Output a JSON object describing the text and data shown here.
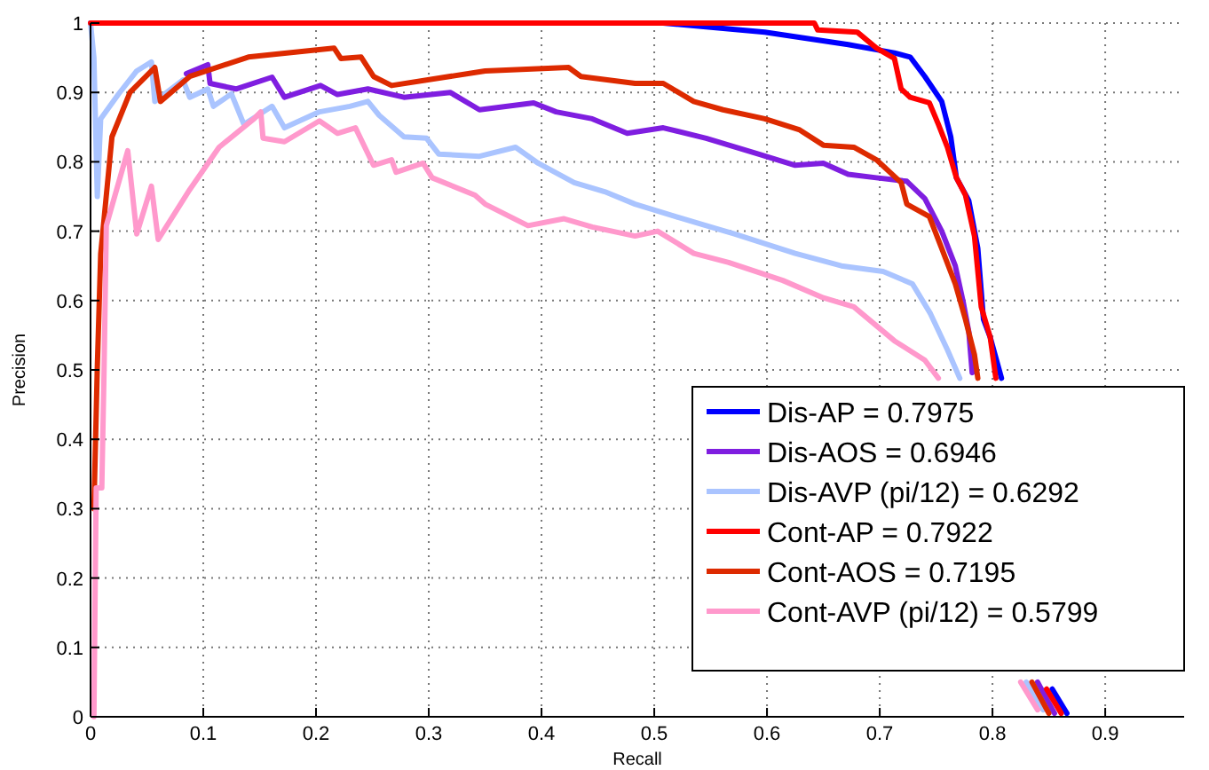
{
  "chart_data": {
    "type": "line",
    "xlabel": "Recall",
    "ylabel": "Precision",
    "xlim": [
      0,
      0.97
    ],
    "ylim": [
      0,
      1
    ],
    "xticks": [
      0,
      0.1,
      0.2,
      0.3,
      0.4,
      0.5,
      0.6,
      0.7,
      0.8,
      0.9
    ],
    "yticks": [
      0,
      0.1,
      0.2,
      0.3,
      0.4,
      0.5,
      0.6,
      0.7,
      0.8,
      0.9,
      1
    ],
    "grid": true,
    "legend": "bottom right",
    "marker": "none",
    "line_style": "solid",
    "series": [
      {
        "name": "Dis-AP = 0.7975",
        "color": "#0000ff",
        "x": [
          0,
          0.508,
          0.598,
          0.672,
          0.713,
          0.727,
          0.74,
          0.755,
          0.763,
          0.768,
          0.779,
          0.787,
          0.792,
          0.798,
          0.808,
          0.83,
          0.853,
          0.866
        ],
        "values": [
          1,
          1,
          0.987,
          0.969,
          0.957,
          0.951,
          0.923,
          0.887,
          0.836,
          0.777,
          0.744,
          0.675,
          0.573,
          0.547,
          0.488,
          null,
          0.04,
          0.005
        ]
      },
      {
        "name": "Dis-AOS = 0.6946",
        "color": "#7f1ee0",
        "x": [
          0.085,
          0.104,
          0.106,
          0.129,
          0.161,
          0.172,
          0.204,
          0.219,
          0.246,
          0.278,
          0.319,
          0.345,
          0.393,
          0.413,
          0.445,
          0.476,
          0.508,
          0.546,
          0.593,
          0.625,
          0.65,
          0.672,
          0.697,
          0.724,
          0.74,
          0.755,
          0.767,
          0.774,
          0.779,
          0.782,
          0.81,
          0.84,
          0.855
        ],
        "values": [
          0.927,
          0.94,
          0.913,
          0.905,
          0.922,
          0.893,
          0.91,
          0.897,
          0.905,
          0.893,
          0.9,
          0.875,
          0.885,
          0.872,
          0.862,
          0.841,
          0.849,
          0.834,
          0.811,
          0.795,
          0.798,
          0.782,
          0.777,
          0.772,
          0.747,
          0.7,
          0.65,
          0.598,
          0.555,
          0.496,
          null,
          0.05,
          0.005
        ]
      },
      {
        "name": "Dis-AVP (pi/12) = 0.6292",
        "color": "#aac4ff",
        "x": [
          0,
          0.003,
          0.006,
          0.009,
          0.025,
          0.041,
          0.054,
          0.057,
          0.082,
          0.088,
          0.104,
          0.109,
          0.125,
          0.136,
          0.161,
          0.172,
          0.203,
          0.23,
          0.246,
          0.256,
          0.278,
          0.298,
          0.309,
          0.345,
          0.377,
          0.397,
          0.429,
          0.456,
          0.483,
          0.519,
          0.571,
          0.625,
          0.666,
          0.703,
          0.729,
          0.745,
          0.76,
          0.771,
          0.8,
          0.83,
          0.845
        ],
        "values": [
          1,
          0.95,
          0.75,
          0.862,
          0.898,
          0.931,
          0.944,
          0.887,
          0.918,
          0.893,
          0.905,
          0.88,
          0.898,
          0.854,
          0.88,
          0.849,
          0.872,
          0.88,
          0.887,
          0.867,
          0.836,
          0.834,
          0.811,
          0.808,
          0.821,
          0.798,
          0.77,
          0.757,
          0.739,
          0.721,
          0.696,
          0.668,
          0.65,
          0.642,
          0.624,
          0.581,
          0.529,
          0.488,
          null,
          0.05,
          0.01
        ]
      },
      {
        "name": "Cont-AP = 0.7922",
        "color": "#ff0000",
        "x": [
          0,
          0.642,
          0.645,
          0.68,
          0.697,
          0.713,
          0.719,
          0.727,
          0.744,
          0.752,
          0.76,
          0.768,
          0.776,
          0.784,
          0.79,
          0.798,
          0.803,
          0.83,
          0.848,
          0.861
        ],
        "values": [
          1,
          1,
          0.99,
          0.987,
          0.964,
          0.949,
          0.905,
          0.893,
          0.885,
          0.854,
          0.821,
          0.777,
          0.752,
          0.693,
          0.591,
          0.547,
          0.488,
          null,
          0.04,
          0.005
        ]
      },
      {
        "name": "Cont-AOS = 0.7195",
        "color": "#dd2a00",
        "x": [
          0.003,
          0.006,
          0.009,
          0.019,
          0.035,
          0.057,
          0.062,
          0.088,
          0.14,
          0.193,
          0.216,
          0.222,
          0.24,
          0.251,
          0.267,
          0.35,
          0.424,
          0.435,
          0.483,
          0.508,
          0.535,
          0.561,
          0.598,
          0.629,
          0.65,
          0.677,
          0.697,
          0.719,
          0.724,
          0.744,
          0.755,
          0.767,
          0.776,
          0.784,
          0.787,
          0.81,
          0.835,
          0.85
        ],
        "values": [
          0.3,
          0.504,
          0.667,
          0.836,
          0.9,
          0.936,
          0.887,
          0.923,
          0.951,
          0.96,
          0.964,
          0.949,
          0.951,
          0.923,
          0.91,
          0.931,
          0.936,
          0.923,
          0.913,
          0.913,
          0.887,
          0.875,
          0.862,
          0.846,
          0.824,
          0.821,
          0.803,
          0.77,
          0.739,
          0.721,
          0.675,
          0.624,
          0.573,
          0.522,
          0.488,
          null,
          0.05,
          0.005
        ]
      },
      {
        "name": "Cont-AVP (pi/12) = 0.5799",
        "color": "#ff99cc",
        "x": [
          0.003,
          0.005,
          0.01,
          0.012,
          0.014,
          0.033,
          0.041,
          0.054,
          0.06,
          0.088,
          0.114,
          0.145,
          0.151,
          0.153,
          0.172,
          0.203,
          0.219,
          0.235,
          0.251,
          0.267,
          0.271,
          0.295,
          0.303,
          0.341,
          0.35,
          0.388,
          0.42,
          0.445,
          0.483,
          0.503,
          0.535,
          0.566,
          0.614,
          0.65,
          0.677,
          0.713,
          0.74,
          0.752,
          0.79,
          0.825,
          0.84
        ],
        "values": [
          0,
          0.33,
          0.33,
          0.5,
          0.708,
          0.816,
          0.696,
          0.765,
          0.688,
          0.76,
          0.821,
          0.862,
          0.872,
          0.834,
          0.829,
          0.859,
          0.841,
          0.849,
          0.795,
          0.803,
          0.785,
          0.798,
          0.777,
          0.752,
          0.739,
          0.708,
          0.718,
          0.706,
          0.693,
          0.7,
          0.668,
          0.655,
          0.629,
          0.604,
          0.591,
          0.542,
          0.514,
          0.488,
          null,
          0.05,
          0.01
        ]
      }
    ]
  }
}
